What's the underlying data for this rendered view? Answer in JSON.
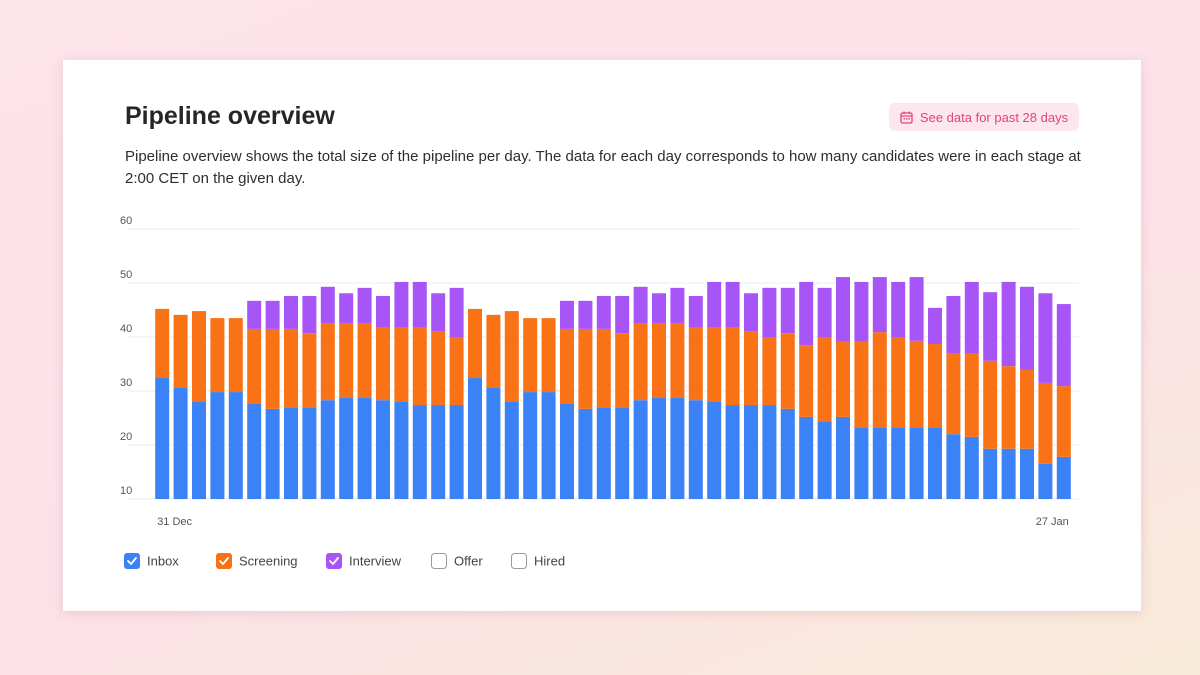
{
  "chart_data": {
    "type": "stacked-bar",
    "title": "Pipeline overview",
    "button": "See data for past 28 days",
    "description": "Pipeline overview shows the total size of the pipeline per day. The data for each day corresponds to how many candidates were in each stage at 2:00 CET on the given day.",
    "categories": [
      "31 Dec",
      null,
      null,
      null,
      null,
      null,
      null,
      null,
      null,
      null,
      null,
      null,
      null,
      null,
      null,
      null,
      null,
      null,
      null,
      null,
      null,
      null,
      null,
      null,
      null,
      null,
      null,
      null,
      null,
      null,
      null,
      null,
      null,
      null,
      null,
      null,
      null,
      null,
      null,
      null,
      null,
      null,
      null,
      null,
      null,
      null,
      null,
      null,
      null,
      "27 Jan"
    ],
    "series": [
      {
        "name": "Inbox",
        "color": "#3b82f6",
        "checked": true,
        "values": [
          32.4,
          30.7,
          28.1,
          29.8,
          29.8,
          27.6,
          26.7,
          27.0,
          27.0,
          28.3,
          28.7,
          28.7,
          28.3,
          28.1,
          27.4,
          27.4,
          27.4,
          32.4,
          30.7,
          28.1,
          29.8,
          29.8,
          27.6,
          26.7,
          27.0,
          27.0,
          28.3,
          28.7,
          28.7,
          28.3,
          28.1,
          27.4,
          27.4,
          27.4,
          26.7,
          25.2,
          24.4,
          25.2,
          23.3,
          23.3,
          23.3,
          23.3,
          23.3,
          22.0,
          21.5,
          19.3,
          19.3,
          19.3,
          16.5,
          17.8
        ]
      },
      {
        "name": "Screening",
        "color": "#f97316",
        "checked": true,
        "values": [
          12.8,
          13.4,
          16.7,
          13.7,
          13.7,
          13.9,
          14.8,
          14.5,
          13.7,
          14.3,
          13.9,
          13.9,
          13.4,
          13.6,
          14.3,
          13.7,
          12.6,
          12.8,
          13.4,
          16.7,
          13.7,
          13.7,
          13.9,
          14.8,
          14.5,
          13.7,
          14.3,
          13.9,
          13.9,
          13.4,
          13.6,
          14.3,
          13.7,
          12.6,
          14.0,
          13.3,
          15.6,
          13.9,
          15.8,
          17.6,
          16.7,
          16.0,
          15.4,
          14.9,
          15.4,
          16.3,
          15.3,
          14.6,
          15.0,
          13.1
        ]
      },
      {
        "name": "Interview",
        "color": "#a855f7",
        "checked": true,
        "values": [
          null,
          null,
          null,
          null,
          null,
          5.2,
          5.2,
          6.1,
          6.9,
          6.7,
          5.5,
          6.5,
          5.9,
          8.5,
          8.5,
          7.0,
          9.1,
          null,
          null,
          null,
          null,
          null,
          5.2,
          5.2,
          6.1,
          6.9,
          6.7,
          5.5,
          6.5,
          5.9,
          8.5,
          8.5,
          7.0,
          9.1,
          8.4,
          11.7,
          9.1,
          12.0,
          11.1,
          10.2,
          10.2,
          11.8,
          6.7,
          10.7,
          13.3,
          12.7,
          15.6,
          15.4,
          16.6,
          15.2
        ]
      },
      {
        "name": "Offer",
        "checked": false
      },
      {
        "name": "Hired",
        "checked": false
      }
    ],
    "ylim": [
      10,
      60
    ],
    "yticks": [
      10,
      20,
      30,
      40,
      50,
      60
    ],
    "grid": true
  }
}
